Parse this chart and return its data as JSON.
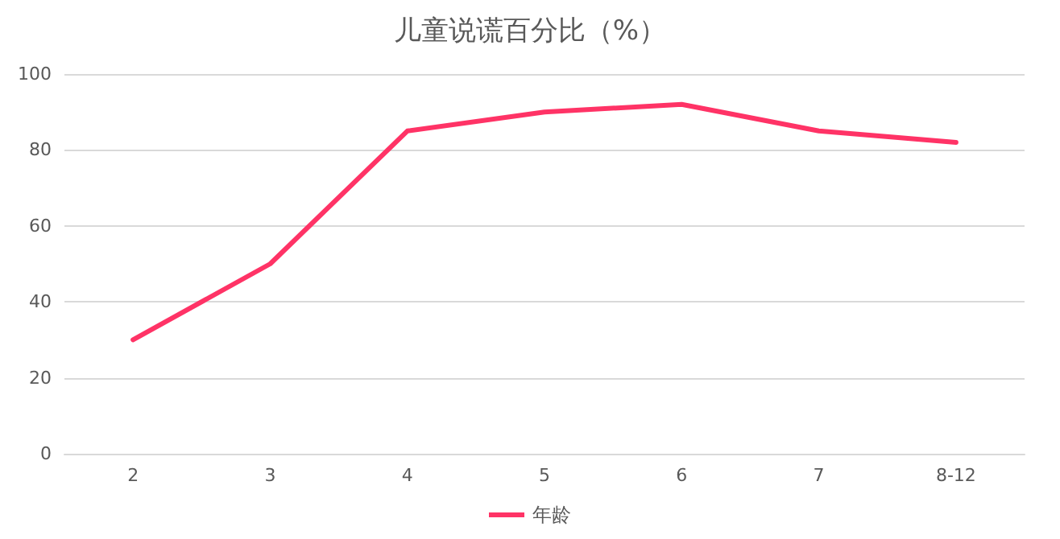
{
  "chart_data": {
    "type": "line",
    "title": "儿童说谎百分比（%）",
    "categories": [
      "2",
      "3",
      "4",
      "5",
      "6",
      "7",
      "8-12"
    ],
    "series": [
      {
        "name": "年龄",
        "color": "#ff3366",
        "values": [
          30,
          50,
          85,
          90,
          92,
          85,
          82
        ]
      }
    ],
    "ylim": [
      0,
      100
    ],
    "yticks": [
      0,
      20,
      40,
      60,
      80,
      100
    ],
    "grid": "y",
    "legend": "bottom",
    "marker": "none",
    "line_style": "solid"
  }
}
